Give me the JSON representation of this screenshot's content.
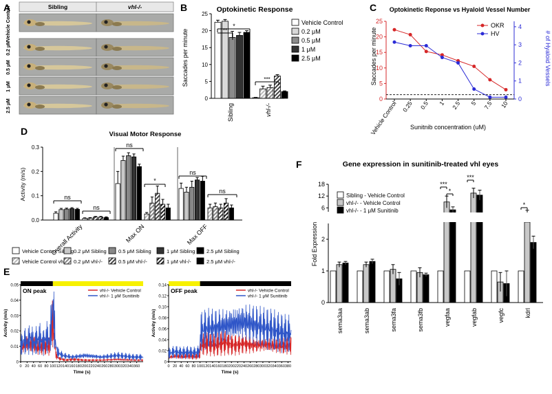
{
  "panel_letters": [
    "A",
    "B",
    "C",
    "D",
    "E",
    "F"
  ],
  "panel_a": {
    "col_labels": [
      "Sibling",
      "vhl-/-"
    ],
    "row_labels": [
      "Vehicle Control",
      "0.2 µM",
      "0.5 µM",
      "1 µM",
      "2.5 µM"
    ]
  },
  "colors": {
    "okr": "#d62728",
    "hv": "#2b2bd6",
    "ctrl": "#d62728",
    "treat": "#2f56c8",
    "light_bar": "#f7f100"
  },
  "chart_data": [
    {
      "id": "B",
      "type": "bar",
      "title": "Optokinetic Response",
      "ylabel": "Saccades per minute",
      "ylim": [
        0,
        25
      ],
      "yticks": [
        "0",
        "5",
        "10",
        "15",
        "20",
        "25"
      ],
      "categories": [
        "Sibling",
        "vhl-/-"
      ],
      "series": [
        {
          "name": "Vehicle Control",
          "values": [
            22.5,
            0.2
          ],
          "errors": [
            0.6,
            0.1
          ]
        },
        {
          "name": "0.2 μM",
          "values": [
            22.8,
            2.8
          ],
          "errors": [
            0.5,
            0.8
          ]
        },
        {
          "name": "0.5 μM",
          "values": [
            18.0,
            3.2
          ],
          "errors": [
            1.8,
            0.7
          ]
        },
        {
          "name": "1 μM",
          "values": [
            18.6,
            6.6
          ],
          "errors": [
            0.9,
            0.4
          ]
        },
        {
          "name": "2.5 μM",
          "values": [
            19.5,
            2.0
          ],
          "errors": [
            0.5,
            0.2
          ]
        }
      ],
      "annotations": [
        "*",
        "**",
        "***"
      ]
    },
    {
      "id": "C",
      "type": "line",
      "title": "Optokinetic Reponse vs Hyaloid Vessel Number",
      "xlabel": "Sunitnib concentration (uM)",
      "ylabel": "Saccades per minute",
      "y2label": "# of Hyaloid Vessels",
      "categories": [
        "Vehicle Control",
        "0.25",
        "0.5",
        "1",
        "2.5",
        "5",
        "7.5",
        "10"
      ],
      "ylim": [
        0,
        25
      ],
      "y2lim": [
        0,
        4.3
      ],
      "yticks": [
        "0",
        "5",
        "10",
        "15",
        "20",
        "25"
      ],
      "y2ticks": [
        "0",
        "1",
        "2",
        "3",
        "4"
      ],
      "series": [
        {
          "name": "OKR",
          "axis": "left",
          "values": [
            22.3,
            20.7,
            15.3,
            14.2,
            12.3,
            10.5,
            6.2,
            3.0
          ]
        },
        {
          "name": "HV",
          "axis": "right",
          "values": [
            3.15,
            2.95,
            2.95,
            2.3,
            2.0,
            0.55,
            0.1,
            0.1
          ]
        }
      ],
      "dashed_y": 1.4
    },
    {
      "id": "D",
      "type": "bar",
      "title": "Visual Motor Response",
      "ylabel": "Activity (m/s)",
      "ylim": [
        0,
        0.3
      ],
      "yticks": [
        "0.0",
        "0.1",
        "0.2",
        "0.3"
      ],
      "categories": [
        "Overall Activity",
        "Max ON",
        "Max OFF"
      ],
      "series": [
        {
          "name": "Vehicle Control Sibling",
          "values": [
            0.028,
            0.15,
            0.13
          ],
          "errors": [
            0.006,
            0.05,
            0.022
          ]
        },
        {
          "name": "0.2 μM Sibling",
          "values": [
            0.043,
            0.245,
            0.115
          ],
          "errors": [
            0.005,
            0.018,
            0.02
          ]
        },
        {
          "name": "0.5 μM Sibling",
          "values": [
            0.045,
            0.265,
            0.135
          ],
          "errors": [
            0.004,
            0.012,
            0.025
          ]
        },
        {
          "name": "1 μM Sibling",
          "values": [
            0.047,
            0.26,
            0.165
          ],
          "errors": [
            0.004,
            0.012,
            0.01
          ]
        },
        {
          "name": "2.5 μM Sibling",
          "values": [
            0.044,
            0.22,
            0.16
          ],
          "errors": [
            0.004,
            0.01,
            0.02
          ]
        },
        {
          "name": "Vehicle Control vhl-/-",
          "values": [
            0.007,
            0.025,
            0.05
          ],
          "errors": [
            0.002,
            0.006,
            0.015
          ]
        },
        {
          "name": "0.2 μM vhl-/-",
          "values": [
            0.008,
            0.07,
            0.055
          ],
          "errors": [
            0.002,
            0.025,
            0.015
          ]
        },
        {
          "name": "0.5 μM vhl-/-",
          "values": [
            0.012,
            0.11,
            0.05
          ],
          "errors": [
            0.003,
            0.03,
            0.015
          ]
        },
        {
          "name": "1 μM vhl-/-",
          "values": [
            0.012,
            0.065,
            0.07
          ],
          "errors": [
            0.003,
            0.02,
            0.018
          ]
        },
        {
          "name": "2.5 μM vhl-/-",
          "values": [
            0.01,
            0.05,
            0.05
          ],
          "errors": [
            0.003,
            0.015,
            0.012
          ]
        }
      ],
      "annotations": [
        "ns",
        "ns",
        "ns",
        "*",
        "ns",
        "ns"
      ]
    },
    {
      "id": "E1",
      "type": "line",
      "title": "ON peak",
      "xlabel": "Time (s)",
      "ylabel": "Activity (m/s)",
      "ylim": [
        0,
        0.05
      ],
      "xlim": [
        0,
        380
      ],
      "yticks": [
        "0",
        "0.01",
        "0.02",
        "0.03",
        "0.04",
        "0.05"
      ],
      "xticks": [
        "0",
        "20",
        "40",
        "60",
        "80",
        "100",
        "120",
        "140",
        "160",
        "180",
        "200",
        "220",
        "240",
        "260",
        "280",
        "300",
        "320",
        "340",
        "360"
      ],
      "light_switch_s": 100,
      "series": [
        {
          "name": "vhl-/- Vehicle Control",
          "x": [
            0,
            10,
            20,
            30,
            40,
            50,
            60,
            70,
            80,
            90,
            95,
            100,
            105,
            110,
            120,
            140,
            160,
            200,
            250,
            300,
            350,
            380
          ],
          "values": [
            0.008,
            0.01,
            0.012,
            0.011,
            0.012,
            0.009,
            0.01,
            0.009,
            0.01,
            0.01,
            0.022,
            0.026,
            0.012,
            0.004,
            0.002,
            0.001,
            0.0015,
            0.001,
            0.001,
            0.0015,
            0.001,
            0.001
          ]
        },
        {
          "name": "vhl-/- 1 μM Sunitinib",
          "x": [
            0,
            10,
            20,
            30,
            40,
            50,
            60,
            70,
            80,
            90,
            95,
            100,
            103,
            108,
            115,
            130,
            160,
            200,
            250,
            300,
            350,
            380
          ],
          "values": [
            0.01,
            0.014,
            0.012,
            0.016,
            0.012,
            0.014,
            0.015,
            0.012,
            0.016,
            0.014,
            0.025,
            0.038,
            0.03,
            0.012,
            0.006,
            0.004,
            0.003,
            0.004,
            0.003,
            0.004,
            0.003,
            0.003
          ]
        }
      ]
    },
    {
      "id": "E2",
      "type": "line",
      "title": "OFF peak",
      "xlabel": "Time (s)",
      "ylabel": "Activity (m/s)",
      "ylim": [
        0,
        0.14
      ],
      "xlim": [
        0,
        390
      ],
      "yticks": [
        "0",
        "0.02",
        "0.04",
        "0.06",
        "0.08",
        "0.10",
        "0.12",
        "0.14"
      ],
      "xticks": [
        "0",
        "20",
        "40",
        "60",
        "80",
        "100",
        "120",
        "140",
        "160",
        "180",
        "200",
        "220",
        "240",
        "260",
        "280",
        "300",
        "320",
        "340",
        "360",
        "380"
      ],
      "light_switch_s": 100,
      "series": [
        {
          "name": "vhl-/- Vehicle Control",
          "x": [
            0,
            20,
            40,
            60,
            80,
            98,
            102,
            120,
            150,
            180,
            210,
            240,
            270,
            300,
            330,
            360,
            390
          ],
          "values": [
            0.008,
            0.01,
            0.009,
            0.01,
            0.009,
            0.01,
            0.03,
            0.032,
            0.03,
            0.035,
            0.03,
            0.033,
            0.03,
            0.032,
            0.03,
            0.028,
            0.03
          ]
        },
        {
          "name": "vhl-/- 1 μM Sunitinib",
          "x": [
            0,
            20,
            40,
            60,
            80,
            98,
            102,
            120,
            150,
            180,
            210,
            240,
            270,
            300,
            330,
            360,
            390
          ],
          "values": [
            0.015,
            0.018,
            0.016,
            0.017,
            0.016,
            0.018,
            0.055,
            0.06,
            0.062,
            0.065,
            0.07,
            0.072,
            0.068,
            0.062,
            0.058,
            0.052,
            0.05
          ]
        }
      ]
    },
    {
      "id": "F",
      "type": "bar",
      "title": "Gene expression in sunitinib-treated vhl eyes",
      "ylabel": "Fold Expression",
      "ylim_lower": [
        0,
        2.5
      ],
      "ylim_upper": [
        4,
        18
      ],
      "yticks_lower": [
        "0",
        "1",
        "2"
      ],
      "yticks_upper": [
        "6",
        "12",
        "18"
      ],
      "categories": [
        "sema3aa",
        "sema3ab",
        "sema3fa",
        "sema3fb",
        "vegfaa",
        "vegfab",
        "vegfc",
        "kdrl"
      ],
      "series": [
        {
          "name": "Sibling - Vehicle Control",
          "values": [
            1,
            1,
            1,
            1,
            1,
            1,
            1,
            1
          ],
          "errors": [
            0,
            0,
            0,
            0,
            0,
            0,
            0,
            0
          ]
        },
        {
          "name": "vhl-/- - Vehicle Control",
          "values": [
            1.2,
            1.2,
            1.05,
            0.95,
            9.0,
            13.5,
            0.65,
            3.8
          ],
          "errors": [
            0.08,
            0.08,
            0.15,
            0.15,
            3.0,
            2.5,
            0.3,
            1.0
          ]
        },
        {
          "name": "vhl-/- - 1 μM Sunitinib",
          "values": [
            1.25,
            1.3,
            0.75,
            0.88,
            5.0,
            12.5,
            0.6,
            1.9
          ],
          "errors": [
            0.05,
            0.07,
            0.2,
            0.05,
            1.5,
            2.5,
            0.4,
            0.2
          ]
        }
      ],
      "annotations": [
        "***",
        "*",
        "***",
        "*"
      ]
    }
  ]
}
